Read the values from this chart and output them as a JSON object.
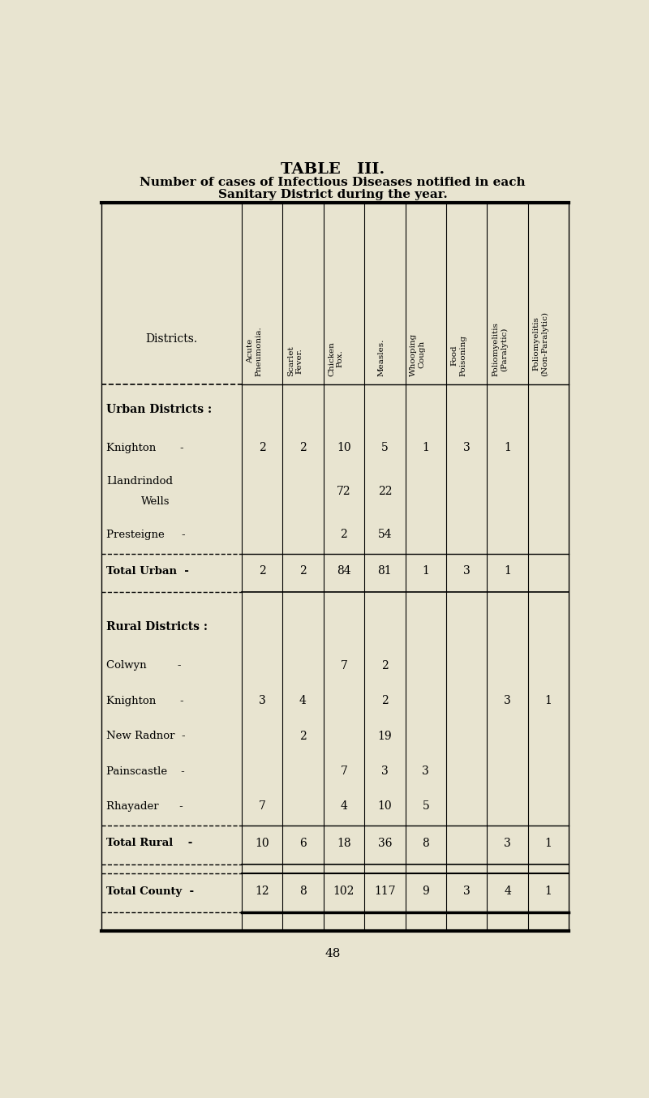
{
  "title": "TABLE   III.",
  "subtitle1": "Number of cases of Infectious Diseases notified in each",
  "subtitle2": "Sanitary District during the year.",
  "col_headers": [
    "Acute\nPneumonia.",
    "Scarlet\nFever.",
    "Chicken\nPox.",
    "Measles.",
    "Whooping\nCough",
    "Food\nPoisoning",
    "Poliomyelitis\n(Paralytic)",
    "Poliomyelitis\n(Non-Paralytic)"
  ],
  "rows": [
    {
      "label": "Urban Districts :",
      "indent": 0,
      "data": [
        "",
        "",
        "",
        "",
        "",
        "",
        "",
        ""
      ],
      "style": "section"
    },
    {
      "label": "Knighton       -",
      "indent": 1,
      "data": [
        "2",
        "2",
        "10",
        "5",
        "1",
        "3",
        "1",
        ""
      ],
      "style": "data"
    },
    {
      "label": "Llandrindod\nWells",
      "indent": 1,
      "data": [
        "",
        "",
        "72",
        "22",
        "",
        "",
        "",
        ""
      ],
      "style": "data_multiline"
    },
    {
      "label": "Presteigne     -",
      "indent": 1,
      "data": [
        "",
        "",
        "2",
        "54",
        "",
        "",
        "",
        ""
      ],
      "style": "data"
    },
    {
      "label": "Total Urban  -",
      "indent": 0,
      "data": [
        "2",
        "2",
        "84",
        "81",
        "1",
        "3",
        "1",
        ""
      ],
      "style": "total"
    },
    {
      "label": "Rural Districts :",
      "indent": 0,
      "data": [
        "",
        "",
        "",
        "",
        "",
        "",
        "",
        ""
      ],
      "style": "section"
    },
    {
      "label": "Colwyn         -",
      "indent": 1,
      "data": [
        "",
        "",
        "7",
        "2",
        "",
        "",
        "",
        ""
      ],
      "style": "data"
    },
    {
      "label": "Knighton       -",
      "indent": 1,
      "data": [
        "3",
        "4",
        "",
        "2",
        "",
        "",
        "3",
        "1"
      ],
      "style": "data"
    },
    {
      "label": "New Radnor  -",
      "indent": 1,
      "data": [
        "",
        "2",
        "",
        "19",
        "",
        "",
        "",
        ""
      ],
      "style": "data"
    },
    {
      "label": "Painscastle    -",
      "indent": 1,
      "data": [
        "",
        "",
        "7",
        "3",
        "3",
        "",
        "",
        ""
      ],
      "style": "data"
    },
    {
      "label": "Rhayader      -",
      "indent": 1,
      "data": [
        "7",
        "",
        "4",
        "10",
        "5",
        "",
        "",
        ""
      ],
      "style": "data"
    },
    {
      "label": "Total Rural    -",
      "indent": 0,
      "data": [
        "10",
        "6",
        "18",
        "36",
        "8",
        "",
        "3",
        "1"
      ],
      "style": "total"
    },
    {
      "label": "Total County  -",
      "indent": 0,
      "data": [
        "12",
        "8",
        "102",
        "117",
        "9",
        "3",
        "4",
        "1"
      ],
      "style": "grand_total"
    }
  ],
  "page_number": "48",
  "bg_color": "#e8e4d0",
  "text_color": "#000000",
  "line_color": "#000000"
}
